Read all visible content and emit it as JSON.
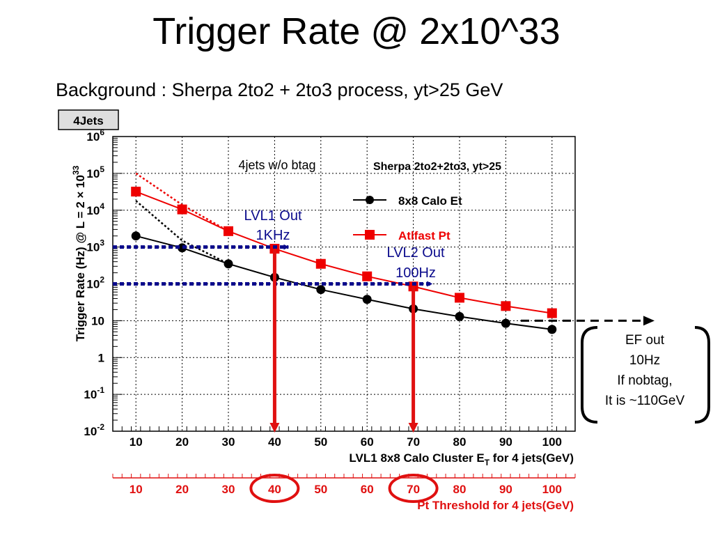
{
  "slide": {
    "title": "Trigger Rate @ 2x10^33",
    "subtitle": "Background : Sherpa 2to2 + 2to3 process, yt>25 GeV"
  },
  "colors": {
    "calo": "#000000",
    "atlfast": "#ee0000",
    "threshold_arrow": "#0a0a8c",
    "cut_arrow": "#e01010"
  },
  "chart_data": {
    "type": "line",
    "histogram_tag": "4Jets",
    "header_text": "Sherpa 2to2+2to3, yt>25",
    "ylabel": "Trigger Rate (Hz) @ L = 2 × 10^33",
    "xlabel": "LVL1 8x8 Calo Cluster E_T for 4 jets(GeV)",
    "secondary_xlabel": "Pt Threshold for 4 jets(GeV)",
    "xlim": [
      5,
      105
    ],
    "ylim": [
      0.01,
      1000000
    ],
    "yscale": "log",
    "grid": true,
    "legend_position": "top-right",
    "x": [
      10,
      20,
      30,
      40,
      50,
      60,
      70,
      80,
      90,
      100
    ],
    "x_tick_labels": [
      "10",
      "20",
      "30",
      "40",
      "50",
      "60",
      "70",
      "80",
      "90",
      "100"
    ],
    "y_tick_labels": [
      {
        "value": 0.01,
        "base": "10",
        "exp": "-2"
      },
      {
        "value": 0.1,
        "base": "10",
        "exp": "-1"
      },
      {
        "value": 1,
        "base": "1",
        "exp": ""
      },
      {
        "value": 10,
        "base": "10",
        "exp": ""
      },
      {
        "value": 100,
        "base": "10",
        "exp": "2"
      },
      {
        "value": 1000,
        "base": "10",
        "exp": "3"
      },
      {
        "value": 10000,
        "base": "10",
        "exp": "4"
      },
      {
        "value": 100000,
        "base": "10",
        "exp": "5"
      },
      {
        "value": 1000000,
        "base": "10",
        "exp": "6"
      }
    ],
    "series": [
      {
        "name": "8x8 Calo Et",
        "marker": "circle",
        "color": "#000000",
        "values": [
          2000,
          950,
          350,
          150,
          70,
          38,
          21,
          13,
          8.5,
          5.8
        ]
      },
      {
        "name": "Atlfast Pt",
        "marker": "square",
        "color": "#ee0000",
        "values": [
          32000,
          10500,
          2700,
          900,
          350,
          160,
          85,
          42,
          25,
          16
        ]
      }
    ],
    "dotted_fits": [
      {
        "color": "#ee0000",
        "x": [
          10,
          20,
          30
        ],
        "y": [
          100000,
          14000,
          2700
        ]
      },
      {
        "color": "#000000",
        "x": [
          10,
          20,
          30
        ],
        "y": [
          18000,
          1500,
          350
        ]
      }
    ],
    "threshold_lines": [
      {
        "label": "LVL1 Out 1KHz",
        "line1": "LVL1 Out",
        "line2": "1KHz",
        "rate": 1000,
        "x_from": 5,
        "x_to": 43
      },
      {
        "label": "LVL2 Out 100Hz",
        "line1": "LVL2 Out",
        "line2": "100Hz",
        "rate": 100,
        "x_from": 5,
        "x_to": 74
      }
    ],
    "cut_arrows": [
      {
        "x": 40
      },
      {
        "x": 70
      }
    ],
    "circled_thresholds": [
      40,
      70
    ],
    "annotations": {
      "no_btag": "4jets w/o btag",
      "ef_rate": 10,
      "ef_lines": [
        "EF out",
        "10Hz",
        "If nobtag,",
        "It is ~110GeV"
      ]
    }
  }
}
